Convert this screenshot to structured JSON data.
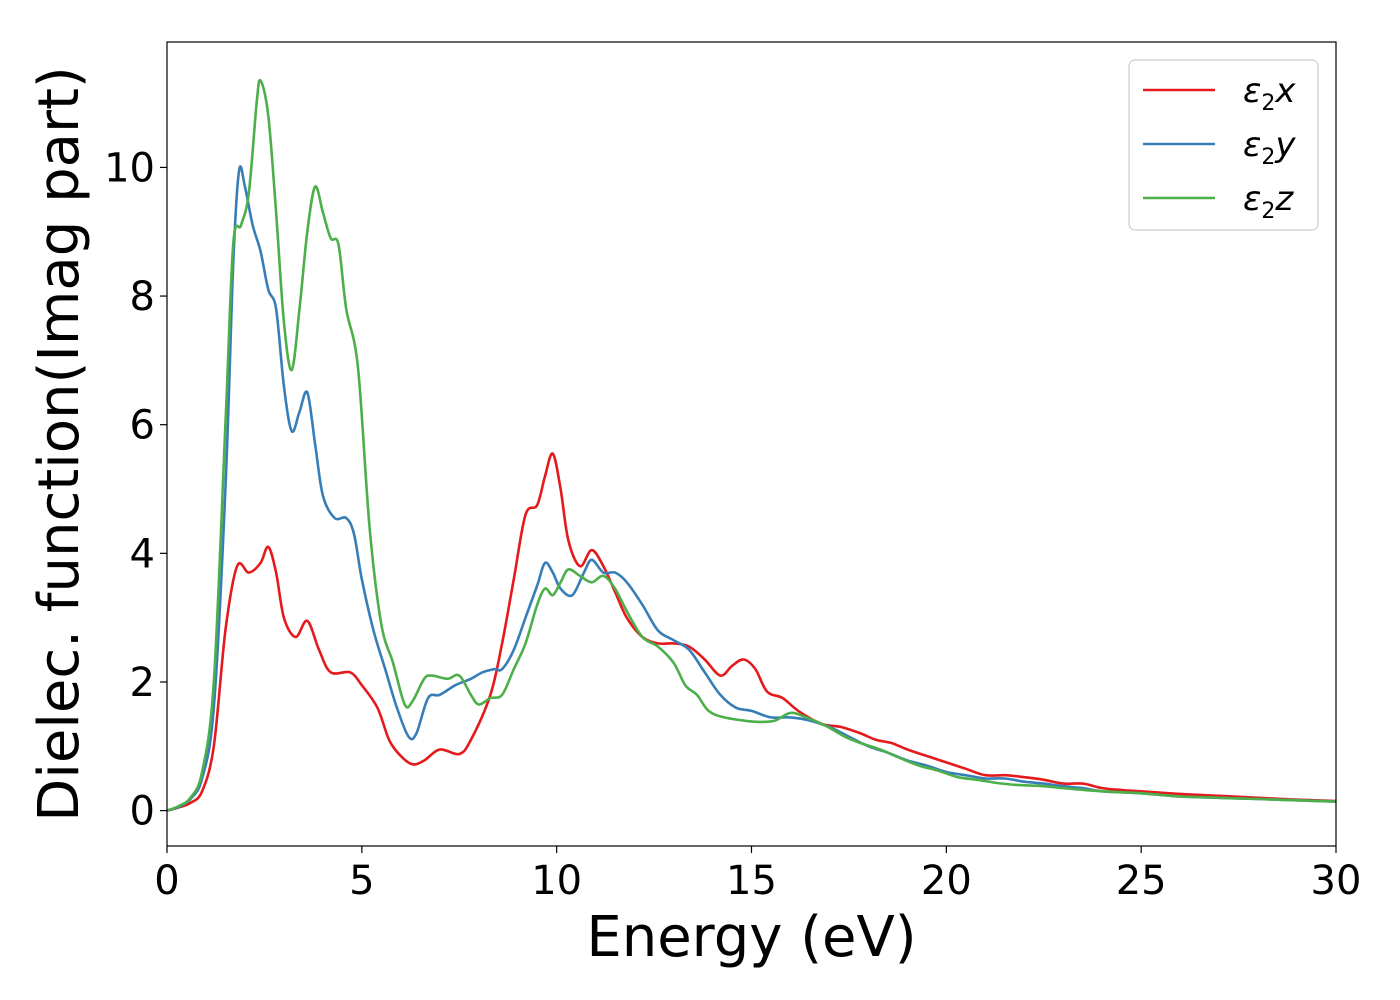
{
  "chart_data": {
    "type": "line",
    "xlabel": "Energy (eV)",
    "ylabel": "Dielec. function(Imag part)",
    "xlim": [
      0,
      30
    ],
    "ylim": [
      -0.55,
      11.95
    ],
    "xticks": [
      "0",
      "5",
      "10",
      "15",
      "20",
      "25",
      "30"
    ],
    "yticks": [
      "0",
      "2",
      "4",
      "6",
      "8",
      "10"
    ],
    "grid": false,
    "legend_position": "top-right",
    "series": [
      {
        "name": "ε2x",
        "legend": {
          "base": "ε",
          "sub": "2",
          "tail": "x"
        },
        "color": "#e41a1c",
        "points": [
          [
            0,
            0
          ],
          [
            0.3,
            0.05
          ],
          [
            0.6,
            0.12
          ],
          [
            0.9,
            0.3
          ],
          [
            1.2,
            1.0
          ],
          [
            1.5,
            2.8
          ],
          [
            1.8,
            3.8
          ],
          [
            2.1,
            3.7
          ],
          [
            2.4,
            3.85
          ],
          [
            2.6,
            4.1
          ],
          [
            2.8,
            3.7
          ],
          [
            3.0,
            3.0
          ],
          [
            3.3,
            2.7
          ],
          [
            3.6,
            2.95
          ],
          [
            3.9,
            2.5
          ],
          [
            4.2,
            2.15
          ],
          [
            4.7,
            2.15
          ],
          [
            5.0,
            1.95
          ],
          [
            5.4,
            1.6
          ],
          [
            5.7,
            1.1
          ],
          [
            6.0,
            0.85
          ],
          [
            6.3,
            0.72
          ],
          [
            6.6,
            0.78
          ],
          [
            7.0,
            0.95
          ],
          [
            7.5,
            0.88
          ],
          [
            7.8,
            1.1
          ],
          [
            8.3,
            1.8
          ],
          [
            8.6,
            2.6
          ],
          [
            8.9,
            3.6
          ],
          [
            9.2,
            4.6
          ],
          [
            9.5,
            4.75
          ],
          [
            9.7,
            5.2
          ],
          [
            9.9,
            5.55
          ],
          [
            10.1,
            5.0
          ],
          [
            10.3,
            4.2
          ],
          [
            10.6,
            3.8
          ],
          [
            10.9,
            4.05
          ],
          [
            11.2,
            3.8
          ],
          [
            11.5,
            3.4
          ],
          [
            11.8,
            3.0
          ],
          [
            12.2,
            2.7
          ],
          [
            12.6,
            2.6
          ],
          [
            13.0,
            2.6
          ],
          [
            13.4,
            2.55
          ],
          [
            13.8,
            2.35
          ],
          [
            14.2,
            2.1
          ],
          [
            14.5,
            2.25
          ],
          [
            14.8,
            2.35
          ],
          [
            15.1,
            2.2
          ],
          [
            15.4,
            1.85
          ],
          [
            15.8,
            1.75
          ],
          [
            16.2,
            1.55
          ],
          [
            16.8,
            1.35
          ],
          [
            17.3,
            1.3
          ],
          [
            17.8,
            1.2
          ],
          [
            18.2,
            1.1
          ],
          [
            18.6,
            1.05
          ],
          [
            19.0,
            0.95
          ],
          [
            19.5,
            0.85
          ],
          [
            20.0,
            0.75
          ],
          [
            20.5,
            0.65
          ],
          [
            21.0,
            0.55
          ],
          [
            21.5,
            0.55
          ],
          [
            22.0,
            0.52
          ],
          [
            22.5,
            0.48
          ],
          [
            23.0,
            0.42
          ],
          [
            23.5,
            0.42
          ],
          [
            24.0,
            0.35
          ],
          [
            24.5,
            0.32
          ],
          [
            25.0,
            0.3
          ],
          [
            26.0,
            0.26
          ],
          [
            27.0,
            0.23
          ],
          [
            28.0,
            0.2
          ],
          [
            29.0,
            0.17
          ],
          [
            30.0,
            0.15
          ]
        ]
      },
      {
        "name": "ε2y",
        "legend": {
          "base": "ε",
          "sub": "2",
          "tail": "y"
        },
        "color": "#377eb8",
        "points": [
          [
            0,
            0
          ],
          [
            0.3,
            0.06
          ],
          [
            0.6,
            0.18
          ],
          [
            0.9,
            0.5
          ],
          [
            1.2,
            1.6
          ],
          [
            1.5,
            5.0
          ],
          [
            1.7,
            8.5
          ],
          [
            1.85,
            9.95
          ],
          [
            2.0,
            9.7
          ],
          [
            2.2,
            9.1
          ],
          [
            2.4,
            8.7
          ],
          [
            2.6,
            8.1
          ],
          [
            2.8,
            7.8
          ],
          [
            3.0,
            6.6
          ],
          [
            3.2,
            5.9
          ],
          [
            3.4,
            6.2
          ],
          [
            3.6,
            6.5
          ],
          [
            3.8,
            5.7
          ],
          [
            4.0,
            4.9
          ],
          [
            4.3,
            4.55
          ],
          [
            4.6,
            4.55
          ],
          [
            4.8,
            4.3
          ],
          [
            5.0,
            3.6
          ],
          [
            5.3,
            2.8
          ],
          [
            5.6,
            2.2
          ],
          [
            5.9,
            1.6
          ],
          [
            6.2,
            1.15
          ],
          [
            6.4,
            1.2
          ],
          [
            6.7,
            1.75
          ],
          [
            7.0,
            1.8
          ],
          [
            7.4,
            1.95
          ],
          [
            7.8,
            2.05
          ],
          [
            8.1,
            2.15
          ],
          [
            8.4,
            2.2
          ],
          [
            8.6,
            2.2
          ],
          [
            8.9,
            2.5
          ],
          [
            9.2,
            3.0
          ],
          [
            9.5,
            3.5
          ],
          [
            9.7,
            3.85
          ],
          [
            9.9,
            3.7
          ],
          [
            10.1,
            3.45
          ],
          [
            10.4,
            3.35
          ],
          [
            10.7,
            3.7
          ],
          [
            10.9,
            3.9
          ],
          [
            11.2,
            3.7
          ],
          [
            11.5,
            3.7
          ],
          [
            11.8,
            3.55
          ],
          [
            12.2,
            3.2
          ],
          [
            12.6,
            2.8
          ],
          [
            13.0,
            2.65
          ],
          [
            13.4,
            2.5
          ],
          [
            13.8,
            2.15
          ],
          [
            14.2,
            1.8
          ],
          [
            14.6,
            1.6
          ],
          [
            15.0,
            1.55
          ],
          [
            15.5,
            1.45
          ],
          [
            16.0,
            1.45
          ],
          [
            16.5,
            1.4
          ],
          [
            17.0,
            1.3
          ],
          [
            17.5,
            1.15
          ],
          [
            18.0,
            1.0
          ],
          [
            18.5,
            0.9
          ],
          [
            19.0,
            0.78
          ],
          [
            19.5,
            0.7
          ],
          [
            20.0,
            0.6
          ],
          [
            20.5,
            0.55
          ],
          [
            21.0,
            0.5
          ],
          [
            21.5,
            0.5
          ],
          [
            22.0,
            0.45
          ],
          [
            22.5,
            0.42
          ],
          [
            23.0,
            0.38
          ],
          [
            23.5,
            0.35
          ],
          [
            24.0,
            0.3
          ],
          [
            25.0,
            0.27
          ],
          [
            26.0,
            0.22
          ],
          [
            27.0,
            0.2
          ],
          [
            28.0,
            0.18
          ],
          [
            29.0,
            0.16
          ],
          [
            30.0,
            0.14
          ]
        ]
      },
      {
        "name": "ε2z",
        "legend": {
          "base": "ε",
          "sub": "2",
          "tail": "z"
        },
        "color": "#4daf4a",
        "points": [
          [
            0,
            0
          ],
          [
            0.3,
            0.07
          ],
          [
            0.6,
            0.2
          ],
          [
            0.9,
            0.6
          ],
          [
            1.2,
            2.0
          ],
          [
            1.5,
            6.0
          ],
          [
            1.7,
            8.8
          ],
          [
            1.9,
            9.1
          ],
          [
            2.1,
            9.6
          ],
          [
            2.3,
            11.0
          ],
          [
            2.4,
            11.35
          ],
          [
            2.6,
            10.8
          ],
          [
            2.8,
            9.3
          ],
          [
            3.0,
            7.6
          ],
          [
            3.2,
            6.85
          ],
          [
            3.4,
            7.8
          ],
          [
            3.6,
            9.0
          ],
          [
            3.8,
            9.7
          ],
          [
            4.0,
            9.3
          ],
          [
            4.2,
            8.9
          ],
          [
            4.4,
            8.8
          ],
          [
            4.6,
            7.8
          ],
          [
            4.9,
            6.9
          ],
          [
            5.2,
            4.4
          ],
          [
            5.5,
            2.9
          ],
          [
            5.8,
            2.3
          ],
          [
            6.1,
            1.65
          ],
          [
            6.3,
            1.7
          ],
          [
            6.6,
            2.05
          ],
          [
            6.8,
            2.1
          ],
          [
            7.2,
            2.05
          ],
          [
            7.5,
            2.1
          ],
          [
            7.8,
            1.8
          ],
          [
            8.0,
            1.65
          ],
          [
            8.3,
            1.75
          ],
          [
            8.6,
            1.8
          ],
          [
            8.9,
            2.2
          ],
          [
            9.2,
            2.6
          ],
          [
            9.5,
            3.2
          ],
          [
            9.7,
            3.45
          ],
          [
            9.9,
            3.35
          ],
          [
            10.1,
            3.55
          ],
          [
            10.3,
            3.75
          ],
          [
            10.6,
            3.65
          ],
          [
            10.9,
            3.55
          ],
          [
            11.2,
            3.65
          ],
          [
            11.5,
            3.45
          ],
          [
            11.8,
            3.1
          ],
          [
            12.2,
            2.7
          ],
          [
            12.6,
            2.55
          ],
          [
            13.0,
            2.3
          ],
          [
            13.3,
            1.95
          ],
          [
            13.6,
            1.8
          ],
          [
            13.9,
            1.55
          ],
          [
            14.3,
            1.45
          ],
          [
            14.8,
            1.4
          ],
          [
            15.2,
            1.38
          ],
          [
            15.6,
            1.4
          ],
          [
            16.0,
            1.52
          ],
          [
            16.4,
            1.45
          ],
          [
            16.9,
            1.32
          ],
          [
            17.4,
            1.15
          ],
          [
            17.8,
            1.05
          ],
          [
            18.3,
            0.95
          ],
          [
            18.8,
            0.82
          ],
          [
            19.3,
            0.7
          ],
          [
            19.8,
            0.62
          ],
          [
            20.3,
            0.52
          ],
          [
            20.8,
            0.48
          ],
          [
            21.3,
            0.43
          ],
          [
            21.8,
            0.4
          ],
          [
            22.5,
            0.38
          ],
          [
            23.0,
            0.35
          ],
          [
            24.0,
            0.3
          ],
          [
            25.0,
            0.27
          ],
          [
            26.0,
            0.22
          ],
          [
            27.0,
            0.2
          ],
          [
            28.0,
            0.18
          ],
          [
            29.0,
            0.16
          ],
          [
            30.0,
            0.14
          ]
        ]
      }
    ]
  }
}
